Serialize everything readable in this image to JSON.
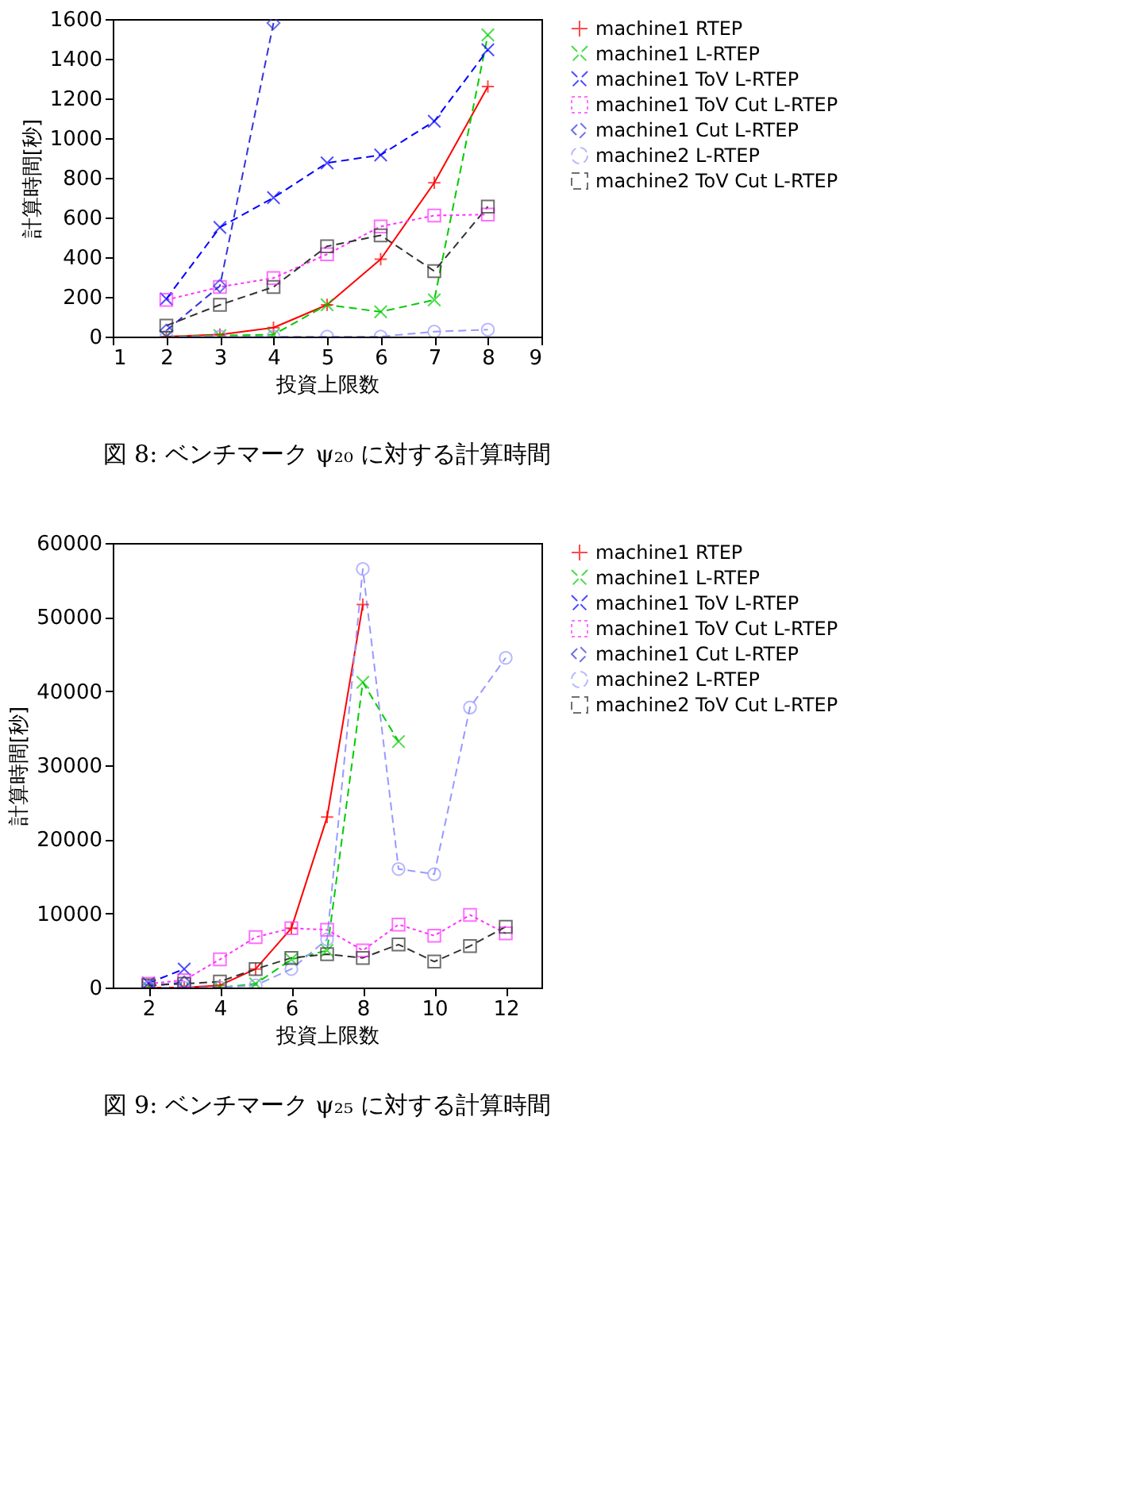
{
  "chart_data": [
    {
      "type": "line",
      "xlabel": "投資上限数",
      "ylabel": "計算時間[秒]",
      "annotations": [
        "図 8: ベンチマーク ψ₂₀ に対する計算時間"
      ],
      "xlim": [
        1,
        9
      ],
      "xticks": [
        1,
        2,
        3,
        4,
        5,
        6,
        7,
        8,
        9
      ],
      "ylim": [
        0,
        1600
      ],
      "yticks": [
        0,
        200,
        400,
        600,
        800,
        1000,
        1200,
        1400,
        1600
      ],
      "grid": false,
      "legend": "right",
      "x": [
        2,
        3,
        4,
        5,
        6,
        7,
        8
      ],
      "series": [
        {
          "name": "machine1 RTEP",
          "color": "#ff0000",
          "marker": "plus",
          "line_style": "solid",
          "values": [
            0,
            10,
            45,
            160,
            390,
            775,
            1260
          ]
        },
        {
          "name": "machine1 L-RTEP",
          "color": "#00cc00",
          "marker": "cross",
          "line_style": "dashed",
          "values": [
            0,
            5,
            10,
            160,
            125,
            185,
            1520
          ]
        },
        {
          "name": "machine1 ToV L-RTEP",
          "color": "#0000ff",
          "marker": "cross",
          "line_style": "dashed",
          "values": [
            190,
            550,
            700,
            875,
            915,
            1085,
            1445
          ]
        },
        {
          "name": "machine1 ToV Cut L-RTEP",
          "color": "#ff33ff",
          "marker": "square",
          "line_style": "dotted",
          "values": [
            185,
            250,
            295,
            415,
            555,
            610,
            615
          ]
        },
        {
          "name": "machine1 Cut L-RTEP",
          "color": "#3333dd",
          "marker": "diamond",
          "line_style": "dashed",
          "x": [
            2,
            3,
            4
          ],
          "values": [
            30,
            255,
            1580
          ]
        },
        {
          "name": "machine2 L-RTEP",
          "color": "#9999ff",
          "marker": "circle",
          "line_style": "dashed",
          "values": [
            0,
            0,
            0,
            0,
            0,
            25,
            35
          ]
        },
        {
          "name": "machine2 ToV Cut L-RTEP",
          "color": "#333333",
          "marker": "square",
          "line_style": "dashed",
          "values": [
            55,
            160,
            250,
            455,
            510,
            330,
            655
          ]
        }
      ]
    },
    {
      "type": "line",
      "xlabel": "投資上限数",
      "ylabel": "計算時間[秒]",
      "annotations": [
        "図 9: ベンチマーク ψ₂₅ に対する計算時間"
      ],
      "xlim": [
        1,
        13
      ],
      "xticks": [
        2,
        4,
        6,
        8,
        10,
        12
      ],
      "ylim": [
        0,
        60000
      ],
      "yticks": [
        0,
        10000,
        20000,
        30000,
        40000,
        50000,
        60000
      ],
      "grid": false,
      "legend": "right",
      "x": [
        2,
        3,
        4,
        5,
        6,
        7,
        8,
        9,
        10,
        11,
        12
      ],
      "series": [
        {
          "name": "machine1 RTEP",
          "color": "#ff0000",
          "marker": "plus",
          "line_style": "solid",
          "x": [
            2,
            3,
            4,
            5,
            6,
            7,
            8
          ],
          "values": [
            0,
            0,
            300,
            2500,
            8000,
            23000,
            51700
          ]
        },
        {
          "name": "machine1 L-RTEP",
          "color": "#00cc00",
          "marker": "cross",
          "line_style": "dashed",
          "x": [
            2,
            3,
            4,
            5,
            6,
            7,
            8,
            9
          ],
          "values": [
            0,
            0,
            0,
            500,
            3800,
            5000,
            41200,
            33200
          ]
        },
        {
          "name": "machine1 ToV L-RTEP",
          "color": "#0000ff",
          "marker": "cross",
          "line_style": "dashed",
          "x": [
            2,
            3
          ],
          "values": [
            600,
            2500
          ]
        },
        {
          "name": "machine1 ToV Cut L-RTEP",
          "color": "#ff33ff",
          "marker": "square",
          "line_style": "dotted",
          "values": [
            500,
            1000,
            3800,
            6800,
            8000,
            7800,
            5000,
            8500,
            7000,
            9800,
            7300
          ]
        },
        {
          "name": "machine1 Cut L-RTEP",
          "color": "#3333dd",
          "marker": "diamond",
          "line_style": "dashed",
          "x": [
            2,
            3
          ],
          "values": [
            200,
            700
          ]
        },
        {
          "name": "machine2 L-RTEP",
          "color": "#9999ff",
          "marker": "circle",
          "line_style": "dashed",
          "values": [
            0,
            0,
            0,
            300,
            2500,
            6500,
            56500,
            16000,
            15300,
            37800,
            44500
          ]
        },
        {
          "name": "machine2 ToV Cut L-RTEP",
          "color": "#333333",
          "marker": "square",
          "line_style": "dashed",
          "values": [
            300,
            500,
            800,
            2500,
            4000,
            4500,
            4000,
            5800,
            3500,
            5600,
            8200
          ]
        }
      ]
    }
  ]
}
